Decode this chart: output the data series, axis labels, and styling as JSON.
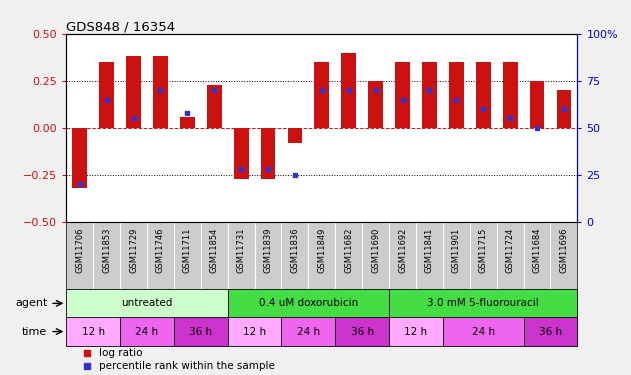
{
  "title": "GDS848 / 16354",
  "samples": [
    "GSM11706",
    "GSM11853",
    "GSM11729",
    "GSM11746",
    "GSM11711",
    "GSM11854",
    "GSM11731",
    "GSM11839",
    "GSM11836",
    "GSM11849",
    "GSM11682",
    "GSM11690",
    "GSM11692",
    "GSM11841",
    "GSM11901",
    "GSM11715",
    "GSM11724",
    "GSM11684",
    "GSM11696"
  ],
  "log_ratios": [
    -0.32,
    0.35,
    0.38,
    0.38,
    0.06,
    0.23,
    -0.27,
    -0.27,
    -0.08,
    0.35,
    0.4,
    0.25,
    0.35,
    0.35,
    0.35,
    0.35,
    0.35,
    0.25,
    0.2
  ],
  "percentile_ranks": [
    20,
    65,
    55,
    70,
    58,
    70,
    28,
    28,
    25,
    70,
    70,
    70,
    65,
    70,
    65,
    60,
    55,
    50,
    60
  ],
  "ylim": [
    -0.5,
    0.5
  ],
  "y2lim": [
    0,
    100
  ],
  "yticks_left": [
    -0.5,
    -0.25,
    0,
    0.25,
    0.5
  ],
  "yticks_right": [
    0,
    25,
    50,
    75,
    100
  ],
  "hlines_dotted": [
    -0.25,
    0.25
  ],
  "hline_red": 0,
  "bar_color": "#cc1111",
  "dot_color": "#3333cc",
  "agent_groups": [
    {
      "label": "untreated",
      "start": 0,
      "end": 6,
      "color": "#ccffcc"
    },
    {
      "label": "0.4 uM doxorubicin",
      "start": 6,
      "end": 12,
      "color": "#44dd44"
    },
    {
      "label": "3.0 mM 5-fluorouracil",
      "start": 12,
      "end": 19,
      "color": "#44dd44"
    }
  ],
  "time_groups": [
    {
      "label": "12 h",
      "start": 0,
      "end": 2,
      "color": "#ffaaff"
    },
    {
      "label": "24 h",
      "start": 2,
      "end": 4,
      "color": "#ee66ee"
    },
    {
      "label": "36 h",
      "start": 4,
      "end": 6,
      "color": "#cc33cc"
    },
    {
      "label": "12 h",
      "start": 6,
      "end": 8,
      "color": "#ffaaff"
    },
    {
      "label": "24 h",
      "start": 8,
      "end": 10,
      "color": "#ee66ee"
    },
    {
      "label": "36 h",
      "start": 10,
      "end": 12,
      "color": "#cc33cc"
    },
    {
      "label": "12 h",
      "start": 12,
      "end": 14,
      "color": "#ffaaff"
    },
    {
      "label": "24 h",
      "start": 14,
      "end": 17,
      "color": "#ee66ee"
    },
    {
      "label": "36 h",
      "start": 17,
      "end": 19,
      "color": "#cc33cc"
    }
  ],
  "axis_color_left": "#cc1111",
  "axis_color_right": "#0000cc",
  "plot_bg": "#ffffff",
  "xtick_bg": "#cccccc",
  "legend_red": "log ratio",
  "legend_blue": "percentile rank within the sample"
}
